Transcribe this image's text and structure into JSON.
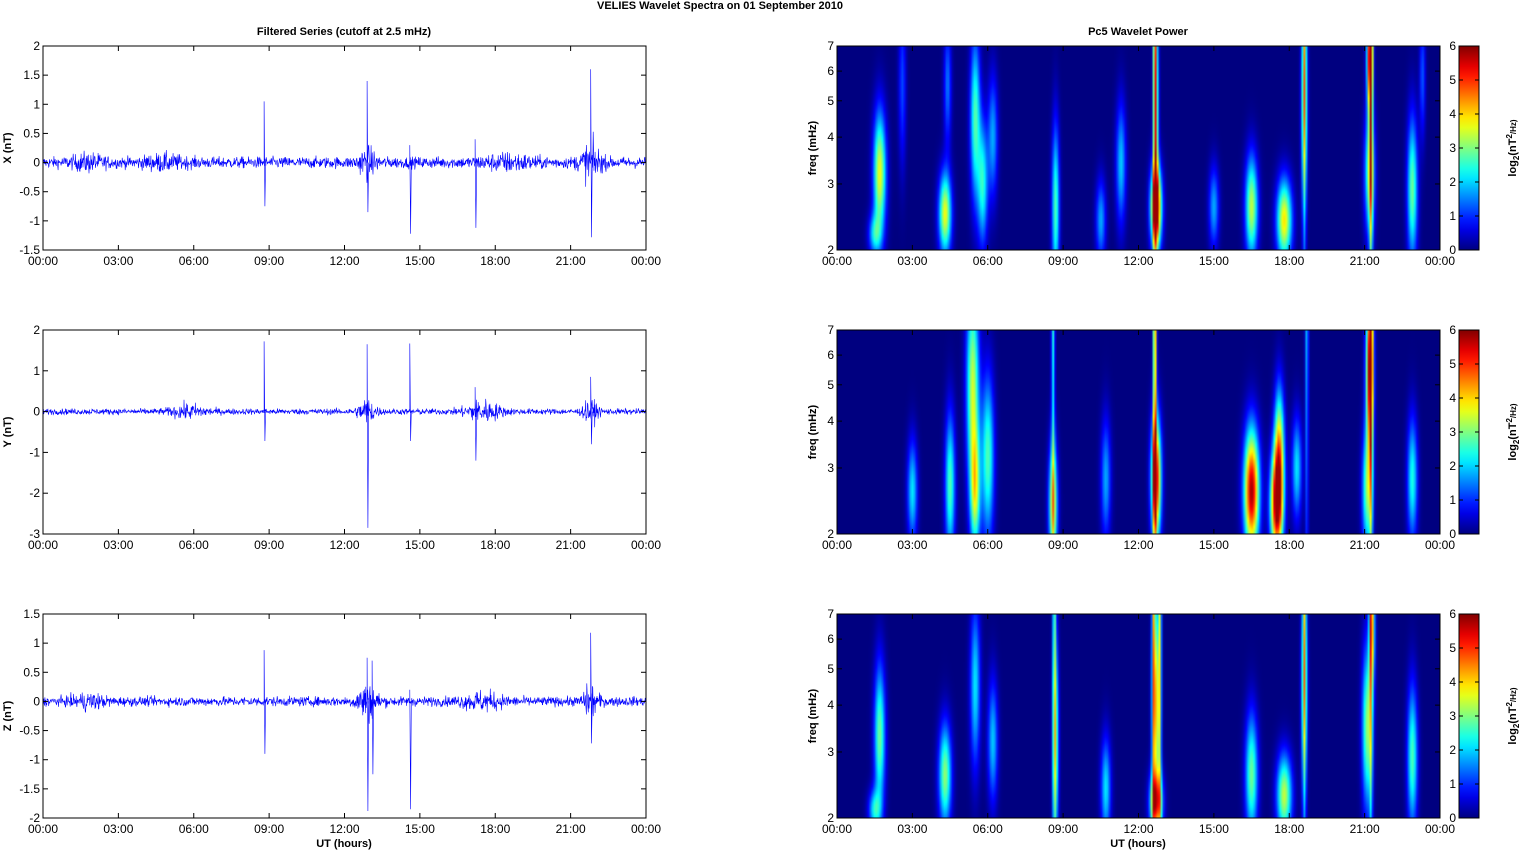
{
  "figure": {
    "title": "VELIES Wavelet Spectra on 01 September 2010",
    "left_column_title": "Filtered Series (cutoff at 2.5 mHz)",
    "right_column_title": "Pc5 Wavelet Power",
    "xlabel": "UT (hours)"
  },
  "time_ticks": [
    "00:00",
    "03:00",
    "06:00",
    "09:00",
    "12:00",
    "15:00",
    "18:00",
    "21:00",
    "00:00"
  ],
  "colors": {
    "series_line": "#0000ff",
    "spectrum_background": "#00008f"
  },
  "chart_data": [
    {
      "type": "line",
      "ylabel": "X (nT)",
      "xlim": [
        0,
        24
      ],
      "ylim": [
        -1.5,
        2
      ],
      "yticks": [
        "2",
        "1.5",
        "1",
        "0.5",
        "0",
        "-0.5",
        "-1",
        "-1.5"
      ],
      "ytick_values": [
        2,
        1.5,
        1,
        0.5,
        0,
        -0.5,
        -1,
        -1.5
      ],
      "noise_amplitude": 0.12,
      "bursts": [
        {
          "t": 1.8,
          "amp": 0.12,
          "w": 0.6
        },
        {
          "t": 4.8,
          "amp": 0.1,
          "w": 0.8
        },
        {
          "t": 12.9,
          "amp": 0.25,
          "w": 0.35
        },
        {
          "t": 18.5,
          "amp": 0.12,
          "w": 1.0
        },
        {
          "t": 21.8,
          "amp": 0.35,
          "w": 0.4
        }
      ],
      "spikes": [
        {
          "t": 8.8,
          "max": 1.05,
          "min": -0.75
        },
        {
          "t": 12.9,
          "max": 1.4,
          "min": -0.85
        },
        {
          "t": 14.6,
          "max": 0.3,
          "min": -1.22
        },
        {
          "t": 17.2,
          "max": 0.4,
          "min": -1.12
        },
        {
          "t": 21.8,
          "max": 1.6,
          "min": -1.28
        }
      ]
    },
    {
      "type": "line",
      "ylabel": "Y (nT)",
      "xlim": [
        0,
        24
      ],
      "ylim": [
        -3,
        2
      ],
      "yticks": [
        "2",
        "1",
        "0",
        "-1",
        "-2",
        "-3"
      ],
      "ytick_values": [
        2,
        1,
        0,
        -1,
        -2,
        -3
      ],
      "noise_amplitude": 0.09,
      "bursts": [
        {
          "t": 5.8,
          "amp": 0.18,
          "w": 0.7
        },
        {
          "t": 12.9,
          "amp": 0.35,
          "w": 0.35
        },
        {
          "t": 17.5,
          "amp": 0.3,
          "w": 0.7
        },
        {
          "t": 21.8,
          "amp": 0.3,
          "w": 0.3
        }
      ],
      "spikes": [
        {
          "t": 8.8,
          "max": 1.72,
          "min": -0.72
        },
        {
          "t": 12.9,
          "max": 1.65,
          "min": -2.85
        },
        {
          "t": 14.6,
          "max": 1.67,
          "min": -0.72
        },
        {
          "t": 17.2,
          "max": 0.6,
          "min": -1.2
        },
        {
          "t": 21.8,
          "max": 0.85,
          "min": -0.8
        }
      ]
    },
    {
      "type": "line",
      "ylabel": "Z (nT)",
      "xlim": [
        0,
        24
      ],
      "ylim": [
        -2,
        1.5
      ],
      "yticks": [
        "1.5",
        "1",
        "0.5",
        "0",
        "-0.5",
        "-1",
        "-1.5",
        "-2"
      ],
      "ytick_values": [
        1.5,
        1,
        0.5,
        0,
        -0.5,
        -1,
        -1.5,
        -2
      ],
      "noise_amplitude": 0.1,
      "bursts": [
        {
          "t": 1.8,
          "amp": 0.12,
          "w": 0.6
        },
        {
          "t": 12.9,
          "amp": 0.35,
          "w": 0.4
        },
        {
          "t": 17.5,
          "amp": 0.15,
          "w": 0.8
        },
        {
          "t": 21.8,
          "amp": 0.3,
          "w": 0.3
        }
      ],
      "spikes": [
        {
          "t": 8.8,
          "max": 0.88,
          "min": -0.9
        },
        {
          "t": 12.9,
          "max": 0.75,
          "min": -1.88
        },
        {
          "t": 13.1,
          "max": 0.7,
          "min": -1.25
        },
        {
          "t": 14.6,
          "max": 0.2,
          "min": -1.85
        },
        {
          "t": 21.8,
          "max": 1.18,
          "min": -0.72
        }
      ]
    },
    {
      "type": "heatmap",
      "ylabel": "freq (mHz)",
      "ylim": [
        2,
        7
      ],
      "yscale": "log",
      "yticks": [
        "7",
        "6",
        "5",
        "4",
        "3",
        "2"
      ],
      "ytick_values": [
        7,
        6,
        5,
        4,
        3,
        2
      ],
      "colorbar_label": "log2(nT2/Hz)",
      "colorbar_ticks": [
        "6",
        "5",
        "4",
        "3",
        "2",
        "1",
        "0"
      ],
      "color_range": [
        0,
        6
      ],
      "blobs": [
        {
          "t": 1.7,
          "f": 3.2,
          "v": 3.8,
          "dt": 0.25,
          "df": 0.3
        },
        {
          "t": 1.5,
          "f": 2.2,
          "v": 2.0,
          "dt": 0.25,
          "df": 0.1
        },
        {
          "t": 2.6,
          "f": 5.5,
          "v": 1.2,
          "dt": 0.15,
          "df": 0.4
        },
        {
          "t": 4.3,
          "f": 2.5,
          "v": 3.8,
          "dt": 0.25,
          "df": 0.2
        },
        {
          "t": 4.4,
          "f": 5.5,
          "v": 1.5,
          "dt": 0.15,
          "df": 0.3
        },
        {
          "t": 5.5,
          "f": 4.5,
          "v": 2.8,
          "dt": 0.2,
          "df": 0.4
        },
        {
          "t": 5.8,
          "f": 3.0,
          "v": 2.5,
          "dt": 0.2,
          "df": 0.3
        },
        {
          "t": 6.2,
          "f": 4.0,
          "v": 1.8,
          "dt": 0.2,
          "df": 0.3
        },
        {
          "t": 8.7,
          "f": 2.6,
          "v": 2.8,
          "dt": 0.15,
          "df": 0.4
        },
        {
          "t": 10.5,
          "f": 2.4,
          "v": 1.8,
          "dt": 0.2,
          "df": 0.2
        },
        {
          "t": 11.3,
          "f": 3.4,
          "v": 2.0,
          "dt": 0.2,
          "df": 0.3
        },
        {
          "t": 12.7,
          "f": 2.6,
          "v": 5.8,
          "dt": 0.22,
          "df": 0.2
        },
        {
          "t": 12.7,
          "f": 4.5,
          "v": 3.2,
          "dt": 0.1,
          "df": 0.6
        },
        {
          "t": 15.0,
          "f": 2.6,
          "v": 1.8,
          "dt": 0.2,
          "df": 0.2
        },
        {
          "t": 16.5,
          "f": 2.6,
          "v": 3.5,
          "dt": 0.25,
          "df": 0.25
        },
        {
          "t": 17.8,
          "f": 2.4,
          "v": 4.0,
          "dt": 0.3,
          "df": 0.2
        },
        {
          "t": 18.6,
          "f": 5.0,
          "v": 3.2,
          "dt": 0.12,
          "df": 0.5
        },
        {
          "t": 21.2,
          "f": 6.5,
          "v": 5.0,
          "dt": 0.12,
          "df": 0.25
        },
        {
          "t": 21.2,
          "f": 3.2,
          "v": 3.2,
          "dt": 0.2,
          "df": 0.3
        },
        {
          "t": 22.9,
          "f": 2.9,
          "v": 3.0,
          "dt": 0.2,
          "df": 0.35
        },
        {
          "t": 23.3,
          "f": 5.8,
          "v": 1.3,
          "dt": 0.12,
          "df": 0.3
        }
      ],
      "ridges": [
        {
          "t": 12.65,
          "v": 3.5
        },
        {
          "t": 21.25,
          "v": 4.5
        },
        {
          "t": 18.6,
          "v": 2.0
        }
      ]
    },
    {
      "type": "heatmap",
      "ylabel": "freq (mHz)",
      "ylim": [
        2,
        7
      ],
      "yscale": "log",
      "yticks": [
        "7",
        "6",
        "5",
        "4",
        "3",
        "2"
      ],
      "ytick_values": [
        7,
        6,
        5,
        4,
        3,
        2
      ],
      "colorbar_label": "log2(nT2/Hz)",
      "colorbar_ticks": [
        "6",
        "5",
        "4",
        "3",
        "2",
        "1",
        "0"
      ],
      "color_range": [
        0,
        6
      ],
      "blobs": [
        {
          "t": 3.0,
          "f": 2.6,
          "v": 2.2,
          "dt": 0.2,
          "df": 0.25
        },
        {
          "t": 4.5,
          "f": 2.7,
          "v": 2.8,
          "dt": 0.2,
          "df": 0.35
        },
        {
          "t": 5.4,
          "f": 5.0,
          "v": 3.5,
          "dt": 0.25,
          "df": 0.5
        },
        {
          "t": 5.5,
          "f": 2.6,
          "v": 3.2,
          "dt": 0.2,
          "df": 0.3
        },
        {
          "t": 6.0,
          "f": 3.2,
          "v": 2.8,
          "dt": 0.25,
          "df": 0.4
        },
        {
          "t": 8.6,
          "f": 2.4,
          "v": 3.5,
          "dt": 0.18,
          "df": 0.3
        },
        {
          "t": 10.7,
          "f": 2.8,
          "v": 1.8,
          "dt": 0.2,
          "df": 0.3
        },
        {
          "t": 12.7,
          "f": 2.8,
          "v": 5.5,
          "dt": 0.2,
          "df": 0.3
        },
        {
          "t": 16.5,
          "f": 2.6,
          "v": 6.0,
          "dt": 0.3,
          "df": 0.3
        },
        {
          "t": 17.5,
          "f": 2.4,
          "v": 6.0,
          "dt": 0.25,
          "df": 0.25
        },
        {
          "t": 17.6,
          "f": 3.4,
          "v": 3.8,
          "dt": 0.2,
          "df": 0.3
        },
        {
          "t": 18.3,
          "f": 3.0,
          "v": 2.2,
          "dt": 0.2,
          "df": 0.25
        },
        {
          "t": 21.2,
          "f": 5.5,
          "v": 5.5,
          "dt": 0.15,
          "df": 0.4
        },
        {
          "t": 21.1,
          "f": 2.6,
          "v": 3.0,
          "dt": 0.2,
          "df": 0.3
        },
        {
          "t": 22.9,
          "f": 2.8,
          "v": 2.5,
          "dt": 0.2,
          "df": 0.3
        }
      ],
      "ridges": [
        {
          "t": 8.6,
          "v": 2.5
        },
        {
          "t": 12.65,
          "v": 5.0
        },
        {
          "t": 21.25,
          "v": 4.0
        },
        {
          "t": 18.7,
          "v": 2.0
        }
      ]
    },
    {
      "type": "heatmap",
      "ylabel": "freq (mHz)",
      "ylim": [
        2,
        7
      ],
      "yscale": "log",
      "yticks": [
        "7",
        "6",
        "5",
        "4",
        "3",
        "2"
      ],
      "ytick_values": [
        7,
        6,
        5,
        4,
        3,
        2
      ],
      "colorbar_label": "log2(nT2/Hz)",
      "colorbar_ticks": [
        "6",
        "5",
        "4",
        "3",
        "2",
        "1",
        "0"
      ],
      "color_range": [
        0,
        6
      ],
      "blobs": [
        {
          "t": 1.7,
          "f": 3.3,
          "v": 3.0,
          "dt": 0.22,
          "df": 0.35
        },
        {
          "t": 1.5,
          "f": 2.1,
          "v": 2.2,
          "dt": 0.25,
          "df": 0.1
        },
        {
          "t": 4.3,
          "f": 2.6,
          "v": 3.2,
          "dt": 0.25,
          "df": 0.25
        },
        {
          "t": 5.5,
          "f": 4.5,
          "v": 2.2,
          "dt": 0.2,
          "df": 0.4
        },
        {
          "t": 6.2,
          "f": 3.2,
          "v": 2.0,
          "dt": 0.2,
          "df": 0.3
        },
        {
          "t": 8.7,
          "f": 3.2,
          "v": 3.0,
          "dt": 0.12,
          "df": 0.5
        },
        {
          "t": 10.7,
          "f": 2.4,
          "v": 2.2,
          "dt": 0.2,
          "df": 0.25
        },
        {
          "t": 12.7,
          "f": 2.2,
          "v": 4.2,
          "dt": 0.25,
          "df": 0.15
        },
        {
          "t": 12.7,
          "f": 4.0,
          "v": 3.8,
          "dt": 0.15,
          "df": 0.5
        },
        {
          "t": 16.5,
          "f": 2.6,
          "v": 3.0,
          "dt": 0.25,
          "df": 0.3
        },
        {
          "t": 17.8,
          "f": 2.3,
          "v": 3.5,
          "dt": 0.3,
          "df": 0.2
        },
        {
          "t": 18.6,
          "f": 4.5,
          "v": 3.0,
          "dt": 0.12,
          "df": 0.5
        },
        {
          "t": 21.1,
          "f": 3.5,
          "v": 3.2,
          "dt": 0.2,
          "df": 0.4
        },
        {
          "t": 21.3,
          "f": 6.5,
          "v": 3.0,
          "dt": 0.12,
          "df": 0.3
        },
        {
          "t": 22.9,
          "f": 2.9,
          "v": 2.8,
          "dt": 0.2,
          "df": 0.35
        }
      ],
      "ridges": [
        {
          "t": 8.65,
          "v": 2.5
        },
        {
          "t": 12.6,
          "v": 3.2
        },
        {
          "t": 12.85,
          "v": 3.0
        },
        {
          "t": 18.6,
          "v": 2.2
        },
        {
          "t": 21.25,
          "v": 3.0
        }
      ]
    }
  ]
}
